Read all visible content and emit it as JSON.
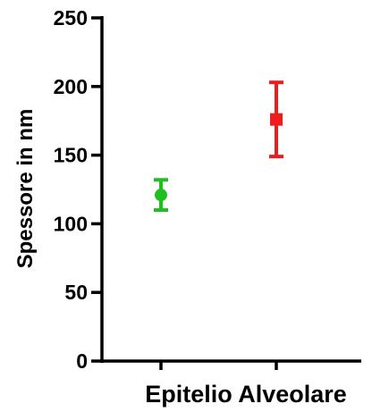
{
  "chart_data": {
    "type": "scatter",
    "title": "",
    "xlabel": "Epitelio Alveolare",
    "ylabel": "Spessore in nm",
    "ylim": [
      0,
      250
    ],
    "yticks": [
      0,
      50,
      100,
      150,
      200,
      250
    ],
    "grid": false,
    "series": [
      {
        "marker": "circle",
        "color": "#1fbf1f",
        "mean": 121,
        "lower": 110,
        "upper": 132
      },
      {
        "marker": "square",
        "color": "#ee1c1c",
        "mean": 176,
        "lower": 149,
        "upper": 203
      }
    ]
  }
}
